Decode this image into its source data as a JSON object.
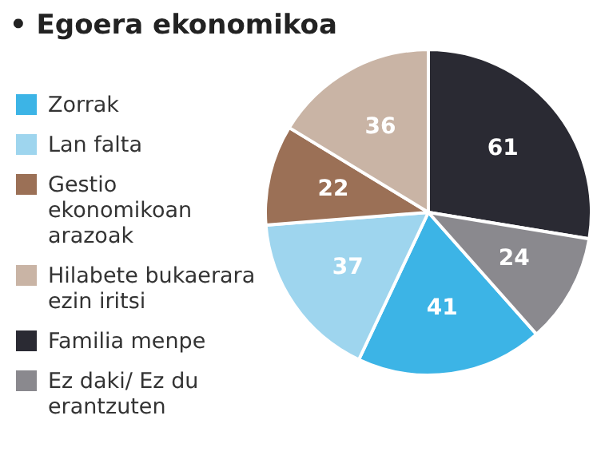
{
  "chart_data": {
    "type": "pie",
    "title": "• Egoera ekonomikoa",
    "categories": [
      "Zorrak",
      "Lan falta",
      "Gestio ekonomikoan arazoak",
      "Hilabete bukaerara ezin iritsi",
      "Familia menpe",
      "Ez daki/ Ez du erantzuten"
    ],
    "values": [
      41,
      37,
      22,
      36,
      61,
      24
    ],
    "colors": [
      "#3cb4e6",
      "#9ed5ee",
      "#9b7056",
      "#c9b4a5",
      "#2a2a33",
      "#8a898e"
    ],
    "data_labels": true,
    "legend": "left"
  }
}
